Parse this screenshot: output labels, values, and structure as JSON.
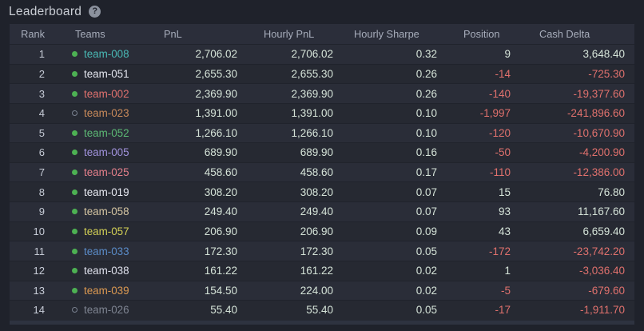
{
  "page": {
    "title": "Leaderboard",
    "help_glyph": "?"
  },
  "colors": {
    "positive_text": "#d5e3d8",
    "negative_text": "#e0716d",
    "rank_text": "#c6cbd6",
    "header_text": "#a7adbb",
    "dot_active": "#4db153",
    "dot_inactive_border": "#79818f",
    "row_odd_bg": "#2a2d38",
    "row_even_bg": "#262932",
    "header_bg": "#2b2e3a",
    "page_bg": "#1f222b"
  },
  "table": {
    "columns": [
      "Rank",
      "Teams",
      "PnL",
      "Hourly PnL",
      "Hourly Sharpe",
      "Position",
      "Cash Delta"
    ],
    "rows": [
      {
        "rank": "1",
        "team": "team-008",
        "team_color": "#49b8b4",
        "dot": "filled",
        "pnl": "2,706.02",
        "hourly_pnl": "2,706.02",
        "hourly_sharpe": "0.32",
        "position": "9",
        "cash_delta": "3,648.40"
      },
      {
        "rank": "2",
        "team": "team-051",
        "team_color": "#e4e6ef",
        "dot": "filled",
        "pnl": "2,655.30",
        "hourly_pnl": "2,655.30",
        "hourly_sharpe": "0.26",
        "position": "-14",
        "cash_delta": "-725.30"
      },
      {
        "rank": "3",
        "team": "team-002",
        "team_color": "#e0716e",
        "dot": "filled",
        "pnl": "2,369.90",
        "hourly_pnl": "2,369.90",
        "hourly_sharpe": "0.26",
        "position": "-140",
        "cash_delta": "-19,377.60"
      },
      {
        "rank": "4",
        "team": "team-023",
        "team_color": "#c98a5a",
        "dot": "hollow",
        "pnl": "1,391.00",
        "hourly_pnl": "1,391.00",
        "hourly_sharpe": "0.10",
        "position": "-1,997",
        "cash_delta": "-241,896.60"
      },
      {
        "rank": "5",
        "team": "team-052",
        "team_color": "#5cb874",
        "dot": "filled",
        "pnl": "1,266.10",
        "hourly_pnl": "1,266.10",
        "hourly_sharpe": "0.10",
        "position": "-120",
        "cash_delta": "-10,670.90"
      },
      {
        "rank": "6",
        "team": "team-005",
        "team_color": "#a193dd",
        "dot": "filled",
        "pnl": "689.90",
        "hourly_pnl": "689.90",
        "hourly_sharpe": "0.16",
        "position": "-50",
        "cash_delta": "-4,200.90"
      },
      {
        "rank": "7",
        "team": "team-025",
        "team_color": "#e5808b",
        "dot": "filled",
        "pnl": "458.60",
        "hourly_pnl": "458.60",
        "hourly_sharpe": "0.17",
        "position": "-110",
        "cash_delta": "-12,386.00"
      },
      {
        "rank": "8",
        "team": "team-019",
        "team_color": "#e8eaf2",
        "dot": "filled",
        "pnl": "308.20",
        "hourly_pnl": "308.20",
        "hourly_sharpe": "0.07",
        "position": "15",
        "cash_delta": "76.80"
      },
      {
        "rank": "9",
        "team": "team-058",
        "team_color": "#d5c5a2",
        "dot": "filled",
        "pnl": "249.40",
        "hourly_pnl": "249.40",
        "hourly_sharpe": "0.07",
        "position": "93",
        "cash_delta": "11,167.60"
      },
      {
        "rank": "10",
        "team": "team-057",
        "team_color": "#d3d055",
        "dot": "filled",
        "pnl": "206.90",
        "hourly_pnl": "206.90",
        "hourly_sharpe": "0.09",
        "position": "43",
        "cash_delta": "6,659.40"
      },
      {
        "rank": "11",
        "team": "team-033",
        "team_color": "#5b8cc9",
        "dot": "filled",
        "pnl": "172.30",
        "hourly_pnl": "172.30",
        "hourly_sharpe": "0.05",
        "position": "-172",
        "cash_delta": "-23,742.20"
      },
      {
        "rank": "12",
        "team": "team-038",
        "team_color": "#dfe1ec",
        "dot": "filled",
        "pnl": "161.22",
        "hourly_pnl": "161.22",
        "hourly_sharpe": "0.02",
        "position": "1",
        "cash_delta": "-3,036.40"
      },
      {
        "rank": "13",
        "team": "team-039",
        "team_color": "#dd9a52",
        "dot": "filled",
        "pnl": "154.50",
        "hourly_pnl": "224.00",
        "hourly_sharpe": "0.02",
        "position": "-5",
        "cash_delta": "-679.60"
      },
      {
        "rank": "14",
        "team": "team-026",
        "team_color": "#7e8491",
        "dot": "hollow",
        "pnl": "55.40",
        "hourly_pnl": "55.40",
        "hourly_sharpe": "0.05",
        "position": "-17",
        "cash_delta": "-1,911.70"
      }
    ]
  }
}
